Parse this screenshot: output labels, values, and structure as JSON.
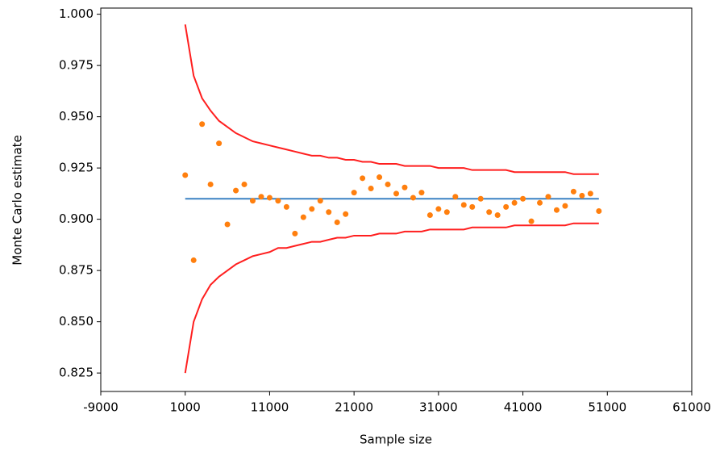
{
  "chart_data": {
    "type": "mixed",
    "x_label": "Sample size",
    "y_label": "Monte Carlo estimate",
    "xlim": [
      -9000,
      61000
    ],
    "ylim": [
      0.816,
      1.003
    ],
    "xticks": [
      -9000,
      1000,
      11000,
      21000,
      31000,
      41000,
      51000,
      61000
    ],
    "yticks": [
      {
        "value": 0.825,
        "label": "0.825"
      },
      {
        "value": 0.85,
        "label": "0.850"
      },
      {
        "value": 0.875,
        "label": "0.875"
      },
      {
        "value": 0.9,
        "label": "0.900"
      },
      {
        "value": 0.925,
        "label": "0.925"
      },
      {
        "value": 0.95,
        "label": "0.950"
      },
      {
        "value": 0.975,
        "label": "0.975"
      },
      {
        "value": 1.0,
        "label": "1.000"
      }
    ],
    "x": [
      1000,
      2000,
      3000,
      4000,
      5000,
      6000,
      7000,
      8000,
      9000,
      10000,
      11000,
      12000,
      13000,
      14000,
      15000,
      16000,
      17000,
      18000,
      19000,
      20000,
      21000,
      22000,
      23000,
      24000,
      25000,
      26000,
      27000,
      28000,
      29000,
      30000,
      31000,
      32000,
      33000,
      34000,
      35000,
      36000,
      37000,
      38000,
      39000,
      40000,
      41000,
      42000,
      43000,
      44000,
      45000,
      46000,
      47000,
      48000,
      49000,
      50000
    ],
    "series": [
      {
        "type": "line",
        "color": "#ff1f1f",
        "values": [
          0.995,
          0.97,
          0.959,
          0.953,
          0.948,
          0.945,
          0.942,
          0.94,
          0.938,
          0.937,
          0.936,
          0.935,
          0.934,
          0.933,
          0.932,
          0.931,
          0.931,
          0.93,
          0.93,
          0.929,
          0.929,
          0.928,
          0.928,
          0.927,
          0.927,
          0.927,
          0.926,
          0.926,
          0.926,
          0.926,
          0.925,
          0.925,
          0.925,
          0.925,
          0.924,
          0.924,
          0.924,
          0.924,
          0.924,
          0.923,
          0.923,
          0.923,
          0.923,
          0.923,
          0.923,
          0.923,
          0.922,
          0.922,
          0.922,
          0.922
        ]
      },
      {
        "type": "line",
        "color": "#ff1f1f",
        "values": [
          0.825,
          0.85,
          0.861,
          0.868,
          0.872,
          0.875,
          0.878,
          0.88,
          0.882,
          0.883,
          0.884,
          0.886,
          0.886,
          0.887,
          0.888,
          0.889,
          0.889,
          0.89,
          0.891,
          0.891,
          0.892,
          0.892,
          0.892,
          0.893,
          0.893,
          0.893,
          0.894,
          0.894,
          0.894,
          0.895,
          0.895,
          0.895,
          0.895,
          0.895,
          0.896,
          0.896,
          0.896,
          0.896,
          0.896,
          0.897,
          0.897,
          0.897,
          0.897,
          0.897,
          0.897,
          0.897,
          0.898,
          0.898,
          0.898,
          0.898
        ]
      },
      {
        "type": "line",
        "color": "#3b82c4",
        "x": [
          1000,
          50000
        ],
        "values": [
          0.91,
          0.91
        ]
      },
      {
        "type": "scatter",
        "color": "#ff7f0e",
        "values": [
          0.9215,
          0.88,
          0.9464,
          0.917,
          0.937,
          0.8975,
          0.914,
          0.917,
          0.909,
          0.911,
          0.9105,
          0.909,
          0.906,
          0.893,
          0.901,
          0.905,
          0.909,
          0.9035,
          0.8985,
          0.9025,
          0.913,
          0.92,
          0.915,
          0.9205,
          0.917,
          0.9125,
          0.9155,
          0.9105,
          0.913,
          0.902,
          0.905,
          0.9035,
          0.911,
          0.907,
          0.906,
          0.91,
          0.9035,
          0.902,
          0.906,
          0.908,
          0.91,
          0.899,
          0.908,
          0.911,
          0.9045,
          0.9065,
          0.9135,
          0.9115,
          0.9125,
          0.904
        ]
      }
    ]
  }
}
